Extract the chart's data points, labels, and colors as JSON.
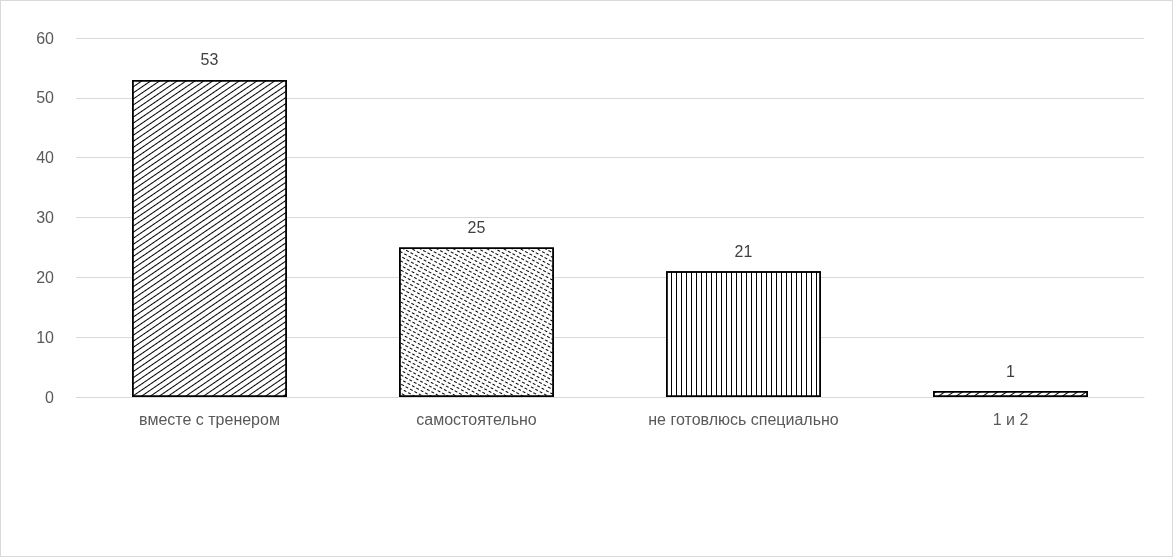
{
  "chart_data": {
    "type": "bar",
    "categories": [
      "вместе с тренером",
      "самостоятельно",
      "не готовлюсь специально",
      "1 и 2"
    ],
    "values": [
      53,
      25,
      21,
      1
    ],
    "color": "#ffffff",
    "ylim": [
      0,
      60
    ],
    "yticks": [
      0,
      10,
      20,
      30,
      40,
      50,
      60
    ],
    "grid": "y",
    "data_labels": true
  }
}
